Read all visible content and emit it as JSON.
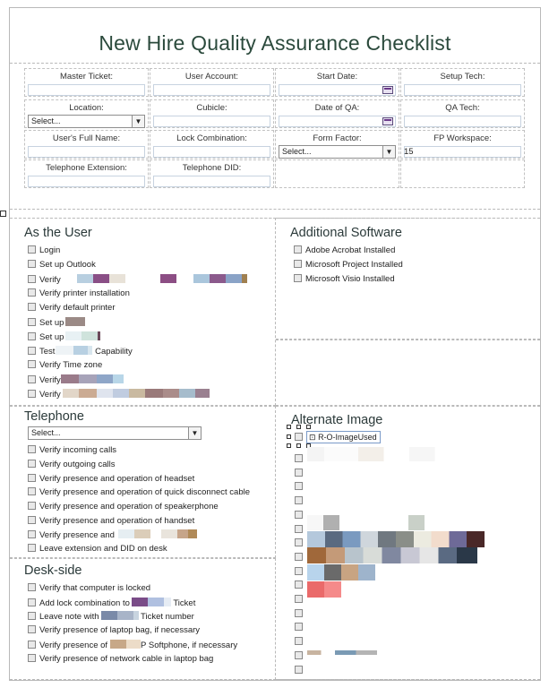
{
  "title": "New Hire Quality Assurance Checklist",
  "header_fields": [
    {
      "label": "Master Ticket:"
    },
    {
      "label": "User Account:"
    },
    {
      "label": "Start Date:"
    },
    {
      "label": "Setup Tech:"
    },
    {
      "label": "Location:",
      "select_value": "Select..."
    },
    {
      "label": "Cubicle:"
    },
    {
      "label": "Date of QA:"
    },
    {
      "label": "QA Tech:"
    },
    {
      "label": "User's Full Name:"
    },
    {
      "label": "Lock Combination:"
    },
    {
      "label": "Form Factor:",
      "select_value": "Select..."
    },
    {
      "label": "FP Workspace:",
      "value": "15"
    },
    {
      "label": "Telephone Extension:"
    },
    {
      "label": "Telephone DID:"
    }
  ],
  "as_the_user": {
    "title": "As the User",
    "items": [
      "Login",
      "Set up Outlook",
      "Verify",
      "Verify printer installation",
      "Verify default printer",
      "Set up",
      "Set up",
      "Test",
      "Verify Time zone",
      "Verify",
      "Verify"
    ],
    "test_suffix": "Capability"
  },
  "additional_software": {
    "title": "Additional Software",
    "items": [
      "Adobe Acrobat Installed",
      "Microsoft Project Installed",
      "Microsoft Visio Installed"
    ]
  },
  "telephone": {
    "title": "Telephone",
    "select_value": "Select...",
    "items": [
      "Verify incoming calls",
      "Verify outgoing calls",
      "Verify presence and operation of headset",
      "Verify presence and operation of quick disconnect cable",
      "Verify presence and operation of speakerphone",
      "Verify presence and operation of handset",
      "Verify presence and",
      "Leave extension and DID on desk"
    ]
  },
  "desk_side": {
    "title": "Desk-side",
    "items": [
      "Verify that computer is locked",
      "Add lock combination to",
      "Leave note with",
      "Verify presence of laptop bag, if necessary",
      "Verify presence of",
      "Verify presence of network cable in laptop bag"
    ],
    "lock_suffix": "Ticket",
    "note_suffix": "Ticket number",
    "softphone_suffix": "P Softphone, if necessary"
  },
  "alternate_image": {
    "title": "Alternate Image",
    "selected_label": "R-O-ImageUsed",
    "checkbox_count": 16
  },
  "colors": {
    "title": "#2b4a3c",
    "border": "#b9b9b9",
    "calendar": "#6b3a8a"
  }
}
